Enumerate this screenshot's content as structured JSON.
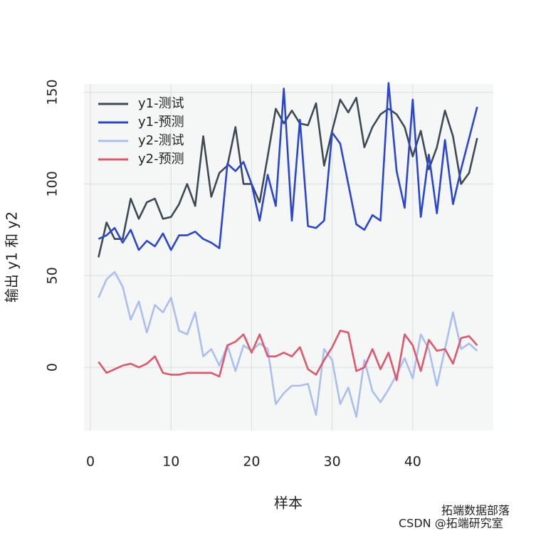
{
  "chart_data": {
    "type": "line",
    "x_label": "样本",
    "y_label": "输出 y1 和 y2",
    "x": [
      1,
      2,
      3,
      4,
      5,
      6,
      7,
      8,
      9,
      10,
      11,
      12,
      13,
      14,
      15,
      16,
      17,
      18,
      19,
      20,
      21,
      22,
      23,
      24,
      25,
      26,
      27,
      28,
      29,
      30,
      31,
      32,
      33,
      34,
      35,
      36,
      37,
      38,
      39,
      40,
      41,
      42,
      43,
      44,
      45,
      46,
      47,
      48
    ],
    "series": [
      {
        "name": "y1-测试",
        "color": "#3d4a55",
        "values": [
          60,
          79,
          70,
          70,
          92,
          81,
          90,
          92,
          81,
          82,
          89,
          100,
          88,
          126,
          93,
          106,
          110,
          131,
          100,
          100,
          90,
          115,
          141,
          133,
          140,
          133,
          132,
          144,
          110,
          129,
          146,
          139,
          147,
          120,
          131,
          138,
          141,
          138,
          131,
          115,
          129,
          108,
          120,
          140,
          126,
          100,
          106,
          125
        ]
      },
      {
        "name": "y1-预测",
        "color": "#2a44d4",
        "values": [
          70,
          72,
          76,
          68,
          75,
          64,
          69,
          66,
          73,
          64,
          72,
          72,
          74,
          70,
          68,
          65,
          111,
          107,
          112,
          100,
          80,
          105,
          88,
          152,
          80,
          135,
          77,
          76,
          80,
          128,
          122,
          100,
          78,
          75,
          83,
          80,
          155,
          107,
          87,
          146,
          82,
          116,
          84,
          124,
          89,
          108,
          125,
          142
        ]
      },
      {
        "name": "y2-测试",
        "color": "#aabff0",
        "values": [
          38,
          48,
          52,
          44,
          26,
          36,
          19,
          34,
          30,
          38,
          20,
          18,
          30,
          6,
          10,
          1,
          12,
          -2,
          12,
          9,
          13,
          10,
          -20,
          -14,
          -10,
          -10,
          -9,
          -26,
          10,
          4,
          -20,
          -11,
          -27,
          4,
          -13,
          -19,
          -12,
          -4,
          5,
          -6,
          18,
          10,
          -10,
          10,
          30,
          10,
          13,
          9
        ]
      },
      {
        "name": "y2-预测",
        "color": "#e0566a",
        "values": [
          3,
          -3,
          -1,
          1,
          2,
          0,
          2,
          6,
          -3,
          -4,
          -4,
          -3,
          -3,
          -3,
          -3,
          -5,
          12,
          14,
          18,
          8,
          18,
          6,
          6,
          8,
          6,
          11,
          -1,
          -4,
          4,
          11,
          20,
          19,
          -2,
          0,
          10,
          -1,
          8,
          -7,
          18,
          12,
          -2,
          15,
          9,
          10,
          2,
          16,
          17,
          12
        ]
      }
    ],
    "xlim": [
      -0.8,
      50
    ],
    "xticks": [
      0,
      10,
      20,
      30,
      40
    ],
    "ylim": [
      -34.5,
      154.5
    ],
    "yticks": [
      0,
      50,
      100,
      150
    ],
    "grid": true,
    "legend": "top-left"
  },
  "watermark": {
    "line1": "拓端数据部落",
    "line2": "CSDN @拓端研究室"
  }
}
